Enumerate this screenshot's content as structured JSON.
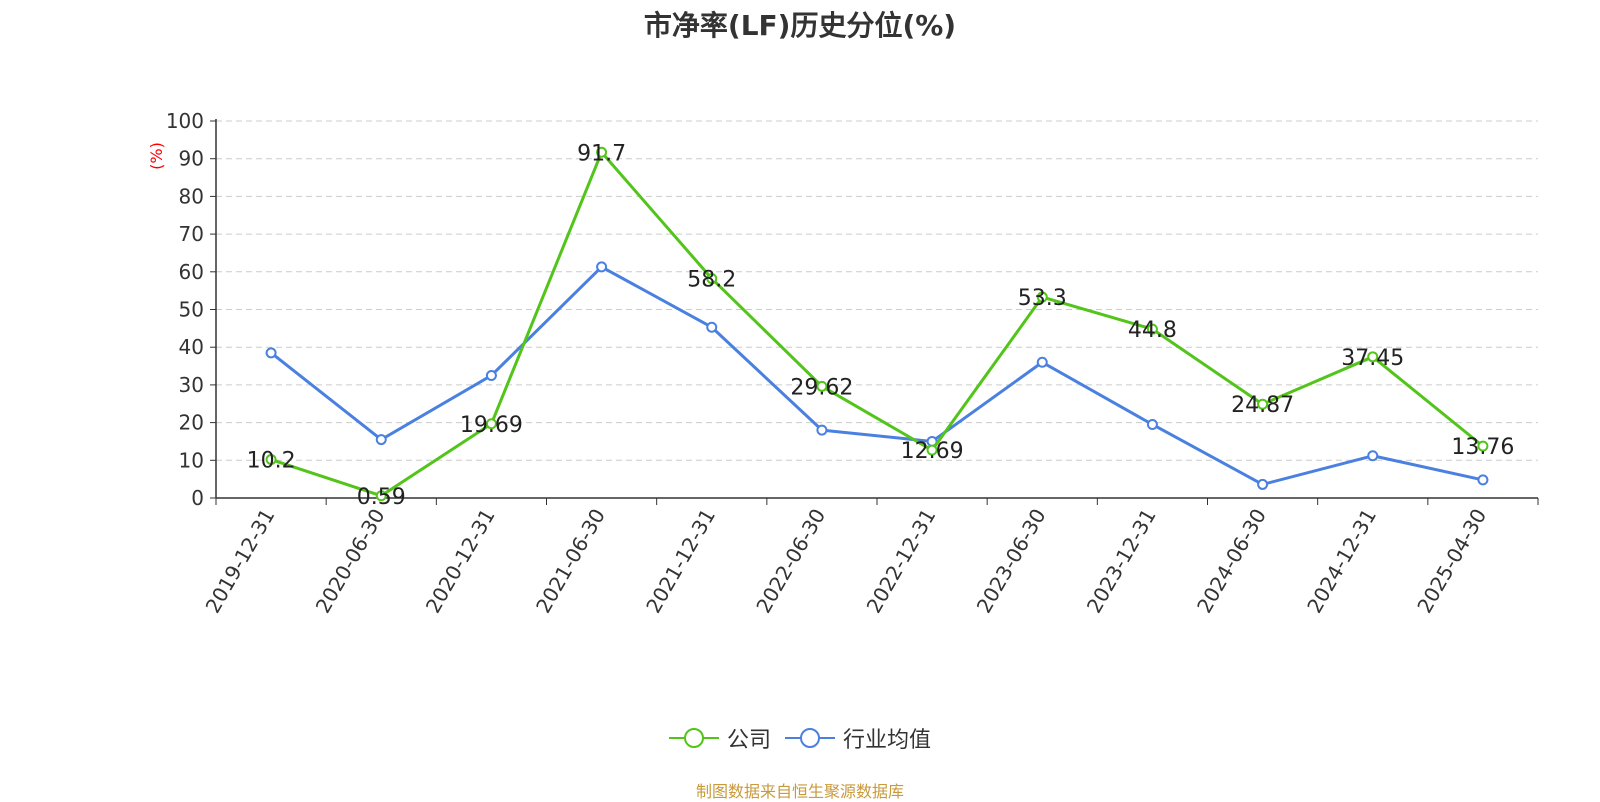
{
  "title": "市净率(LF)历史分位(%)",
  "footer": "制图数据来自恒生聚源数据库",
  "colors": {
    "company": "#52c41a",
    "industry": "#4a80e0",
    "axis": "#333333",
    "grid": "#cccccc",
    "ylabel": "#ff0000"
  },
  "chart_data": {
    "type": "line",
    "title": "市净率(LF)历史分位(%)",
    "ylabel": "(%)",
    "xlabel": "",
    "ylim": [
      0,
      100
    ],
    "yticks": [
      0,
      10,
      20,
      30,
      40,
      50,
      60,
      70,
      80,
      90,
      100
    ],
    "grid": true,
    "legend_position": "bottom",
    "categories": [
      "2019-12-31",
      "2020-06-30",
      "2020-12-31",
      "2021-06-30",
      "2021-12-31",
      "2022-06-30",
      "2022-12-31",
      "2023-06-30",
      "2023-12-31",
      "2024-06-30",
      "2024-12-31",
      "2025-04-30"
    ],
    "series": [
      {
        "name": "公司",
        "color": "#52c41a",
        "show_labels": true,
        "values": [
          10.2,
          0.59,
          19.69,
          91.7,
          58.2,
          29.62,
          12.69,
          53.3,
          44.8,
          24.87,
          37.45,
          13.76
        ]
      },
      {
        "name": "行业均值",
        "color": "#4a80e0",
        "show_labels": false,
        "values": [
          38.5,
          15.5,
          32.5,
          61.3,
          45.3,
          18.0,
          15.0,
          36.0,
          19.5,
          3.6,
          11.2,
          4.8
        ]
      }
    ]
  }
}
